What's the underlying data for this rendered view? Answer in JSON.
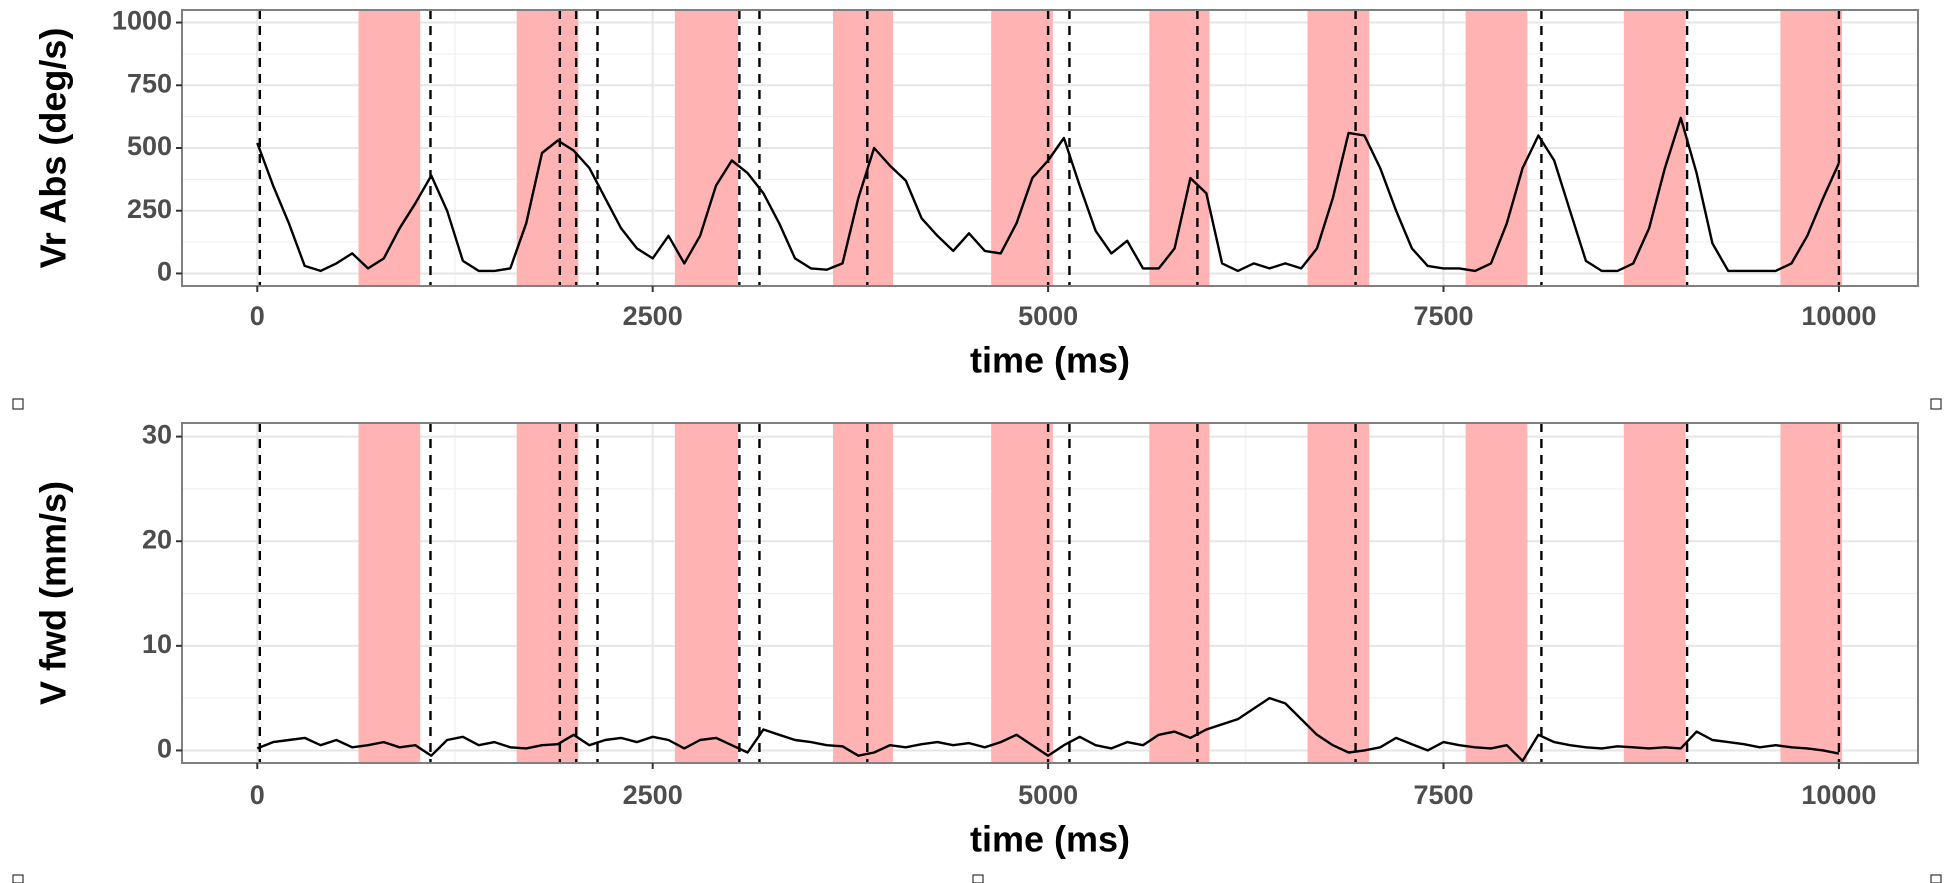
{
  "chart_data": [
    {
      "type": "line",
      "xlabel": "time (ms)",
      "ylabel": "Vr Abs (deg/s)",
      "x": [
        0,
        100,
        200,
        300,
        400,
        500,
        600,
        700,
        800,
        900,
        1000,
        1100,
        1200,
        1300,
        1400,
        1500,
        1600,
        1700,
        1800,
        1900,
        2000,
        2100,
        2200,
        2300,
        2400,
        2500,
        2600,
        2700,
        2800,
        2900,
        3000,
        3100,
        3200,
        3300,
        3400,
        3500,
        3600,
        3700,
        3800,
        3900,
        4000,
        4100,
        4200,
        4300,
        4400,
        4500,
        4600,
        4700,
        4800,
        4900,
        5000,
        5100,
        5200,
        5300,
        5400,
        5500,
        5600,
        5700,
        5800,
        5900,
        6000,
        6100,
        6200,
        6300,
        6400,
        6500,
        6600,
        6700,
        6800,
        6900,
        7000,
        7100,
        7200,
        7300,
        7400,
        7500,
        7600,
        7700,
        7800,
        7900,
        8000,
        8100,
        8200,
        8300,
        8400,
        8500,
        8600,
        8700,
        8800,
        8900,
        9000,
        9100,
        9200,
        9300,
        9400,
        9500,
        9600,
        9700,
        9800,
        9900,
        10000
      ],
      "series": [
        {
          "color": "#000000",
          "values": [
            520,
            350,
            200,
            30,
            10,
            40,
            80,
            20,
            60,
            180,
            280,
            390,
            250,
            50,
            10,
            10,
            20,
            200,
            480,
            530,
            490,
            420,
            300,
            180,
            100,
            60,
            150,
            40,
            150,
            350,
            450,
            400,
            320,
            200,
            60,
            20,
            15,
            40,
            300,
            500,
            430,
            370,
            220,
            150,
            90,
            160,
            90,
            80,
            200,
            380,
            450,
            540,
            350,
            170,
            80,
            130,
            20,
            20,
            100,
            380,
            320,
            40,
            10,
            40,
            20,
            40,
            20,
            100,
            300,
            560,
            550,
            420,
            250,
            100,
            30,
            20,
            20,
            10,
            40,
            200,
            420,
            550,
            450,
            250,
            50,
            10,
            10,
            40,
            180,
            420,
            620,
            400,
            120,
            10,
            10,
            10,
            10,
            40,
            150,
            300,
            440
          ]
        }
      ],
      "shaded_regions": [
        [
          640,
          1030
        ],
        [
          1640,
          2030
        ],
        [
          2640,
          3040
        ],
        [
          3640,
          4020
        ],
        [
          4640,
          5030
        ],
        [
          5640,
          6020
        ],
        [
          6640,
          7030
        ],
        [
          7640,
          8030
        ],
        [
          8640,
          9030
        ],
        [
          9630,
          10020
        ]
      ],
      "shade_color": "#ffb3b3",
      "vlines": [
        16,
        1095,
        1913,
        2016,
        2151,
        3048,
        3175,
        3857,
        5000,
        5135,
        5944,
        6944,
        8119,
        9040,
        10000
      ],
      "xlim": [
        -476,
        10500
      ],
      "xticks": [
        0,
        2500,
        5000,
        7500,
        10000
      ],
      "minor_xticks": [
        1250,
        3750,
        6250,
        8750
      ],
      "ylim": [
        -50,
        1050
      ],
      "yticks": [
        0,
        250,
        500,
        750,
        1000
      ],
      "minor_yticks": [
        125,
        375,
        625,
        875
      ],
      "grid": true
    },
    {
      "type": "line",
      "xlabel": "time (ms)",
      "ylabel": "V fwd (mm/s)",
      "x": [
        0,
        100,
        200,
        300,
        400,
        500,
        600,
        700,
        800,
        900,
        1000,
        1100,
        1200,
        1300,
        1400,
        1500,
        1600,
        1700,
        1800,
        1900,
        2000,
        2100,
        2200,
        2300,
        2400,
        2500,
        2600,
        2700,
        2800,
        2900,
        3000,
        3100,
        3200,
        3300,
        3400,
        3500,
        3600,
        3700,
        3800,
        3900,
        4000,
        4100,
        4200,
        4300,
        4400,
        4500,
        4600,
        4700,
        4800,
        4900,
        5000,
        5100,
        5200,
        5300,
        5400,
        5500,
        5600,
        5700,
        5800,
        5900,
        6000,
        6100,
        6200,
        6300,
        6400,
        6500,
        6600,
        6700,
        6800,
        6900,
        7000,
        7100,
        7200,
        7300,
        7400,
        7500,
        7600,
        7700,
        7800,
        7900,
        8000,
        8100,
        8200,
        8300,
        8400,
        8500,
        8600,
        8700,
        8800,
        8900,
        9000,
        9100,
        9200,
        9300,
        9400,
        9500,
        9600,
        9700,
        9800,
        9900,
        10000
      ],
      "series": [
        {
          "color": "#000000",
          "values": [
            0.2,
            0.8,
            1.0,
            1.2,
            0.5,
            1.0,
            0.3,
            0.5,
            0.8,
            0.3,
            0.5,
            -0.5,
            1.0,
            1.3,
            0.5,
            0.8,
            0.3,
            0.2,
            0.5,
            0.6,
            1.5,
            0.5,
            1.0,
            1.2,
            0.8,
            1.3,
            1.0,
            0.2,
            1.0,
            1.2,
            0.5,
            -0.2,
            2.0,
            1.5,
            1.0,
            0.8,
            0.5,
            0.4,
            -0.5,
            -0.2,
            0.5,
            0.3,
            0.6,
            0.8,
            0.5,
            0.7,
            0.3,
            0.8,
            1.5,
            0.5,
            -0.5,
            0.5,
            1.3,
            0.5,
            0.2,
            0.8,
            0.5,
            1.5,
            1.8,
            1.2,
            2.0,
            2.5,
            3.0,
            4.0,
            5.0,
            4.5,
            3.0,
            1.5,
            0.5,
            -0.2,
            0.0,
            0.3,
            1.2,
            0.6,
            0.0,
            0.8,
            0.5,
            0.3,
            0.2,
            0.5,
            -1.0,
            1.5,
            0.8,
            0.5,
            0.3,
            0.2,
            0.4,
            0.3,
            0.2,
            0.3,
            0.2,
            1.8,
            1.0,
            0.8,
            0.6,
            0.3,
            0.5,
            0.3,
            0.2,
            0.0,
            -0.3
          ]
        }
      ],
      "shaded_regions": [
        [
          640,
          1030
        ],
        [
          1640,
          2030
        ],
        [
          2640,
          3040
        ],
        [
          3640,
          4020
        ],
        [
          4640,
          5030
        ],
        [
          5640,
          6020
        ],
        [
          6640,
          7030
        ],
        [
          7640,
          8030
        ],
        [
          8640,
          9030
        ],
        [
          9630,
          10020
        ]
      ],
      "shade_color": "#ffb3b3",
      "vlines": [
        16,
        1095,
        1913,
        2016,
        2151,
        3048,
        3175,
        3857,
        5000,
        5135,
        5944,
        6944,
        8119,
        9040,
        10000
      ],
      "xlim": [
        -476,
        10500
      ],
      "xticks": [
        0,
        2500,
        5000,
        7500,
        10000
      ],
      "minor_xticks": [
        1250,
        3750,
        6250,
        8750
      ],
      "ylim": [
        -1.2,
        31.3
      ],
      "yticks": [
        0,
        10,
        20,
        30
      ],
      "minor_yticks": [
        5,
        15,
        25
      ],
      "grid": true
    }
  ]
}
